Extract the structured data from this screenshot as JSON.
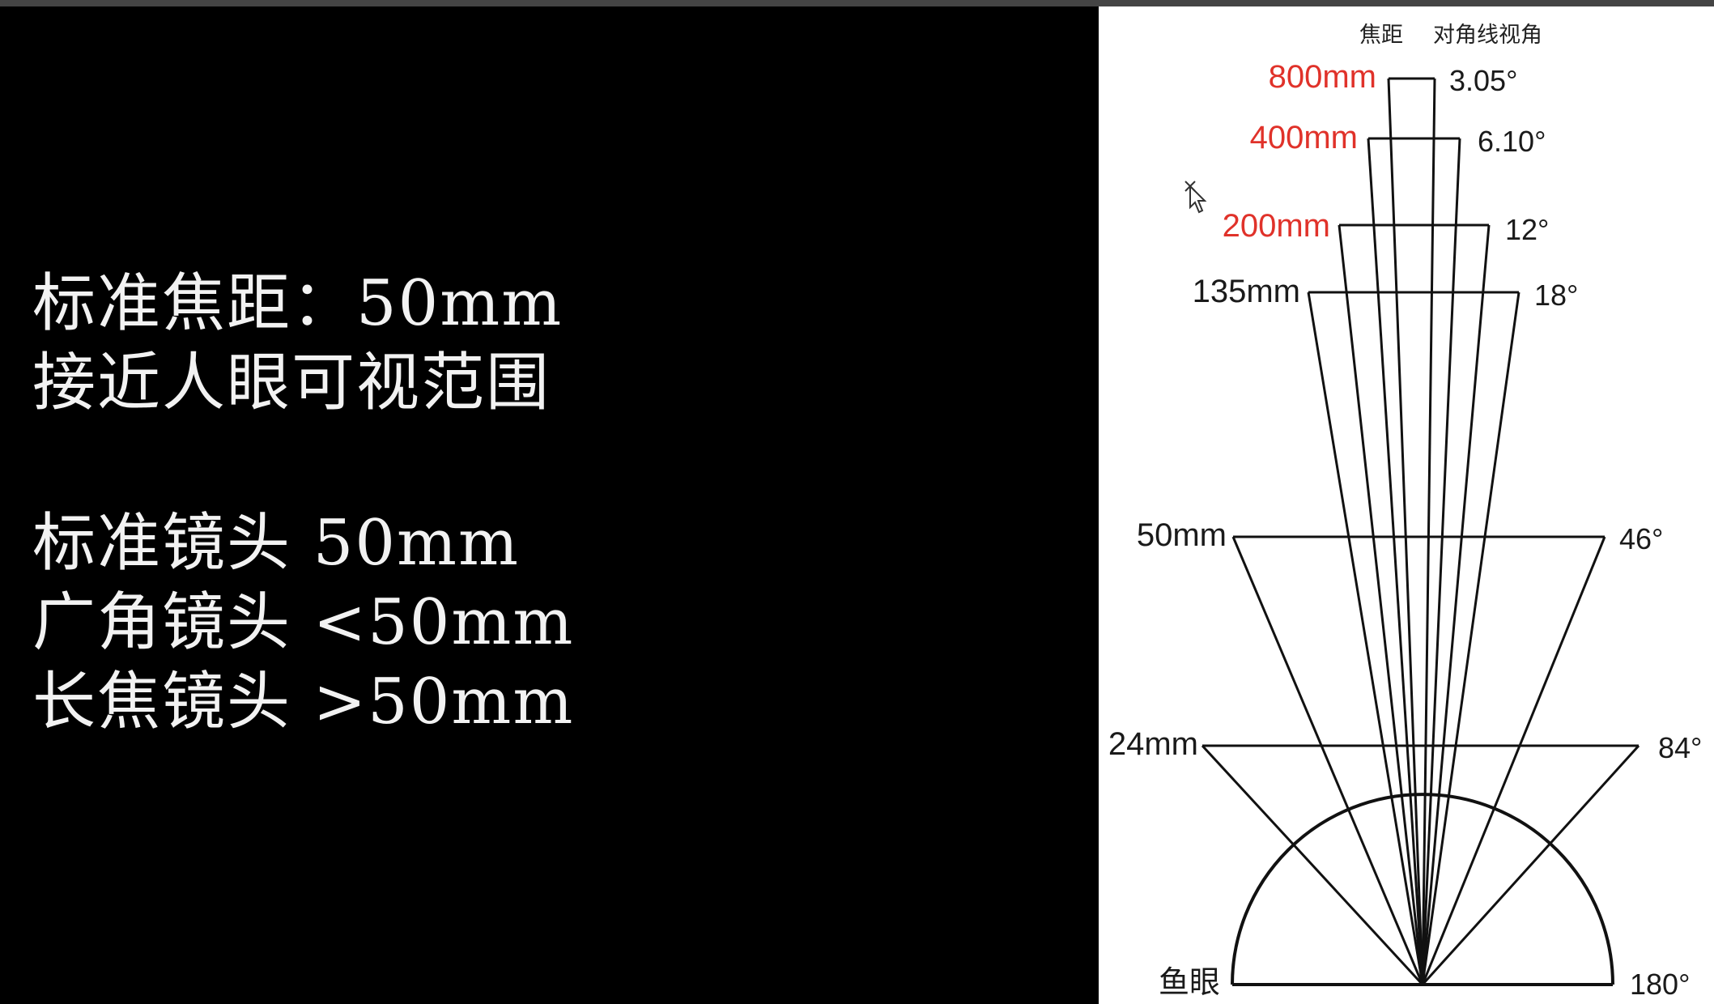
{
  "slide_text": {
    "line1": "标准焦距：50mm",
    "line2": "接近人眼可视范围",
    "line3": "标准镜头 50mm",
    "line4": "广角镜头 <50mm",
    "line5": "长焦镜头 >50mm"
  },
  "diagram": {
    "header_focal": "焦距",
    "header_angle": "对角线视角",
    "lenses": [
      {
        "focal": "800mm",
        "angle": "3.05°",
        "highlight": true
      },
      {
        "focal": "400mm",
        "angle": "6.10°",
        "highlight": true
      },
      {
        "focal": "200mm",
        "angle": "12°",
        "highlight": true
      },
      {
        "focal": "135mm",
        "angle": "18°",
        "highlight": false
      },
      {
        "focal": "50mm",
        "angle": "46°",
        "highlight": false
      },
      {
        "focal": "24mm",
        "angle": "84°",
        "highlight": false
      },
      {
        "focal": "鱼眼",
        "angle": "180°",
        "highlight": false
      }
    ],
    "colors": {
      "highlight": "#e0322a",
      "normal": "#1a1a1a",
      "line": "#111111"
    }
  }
}
